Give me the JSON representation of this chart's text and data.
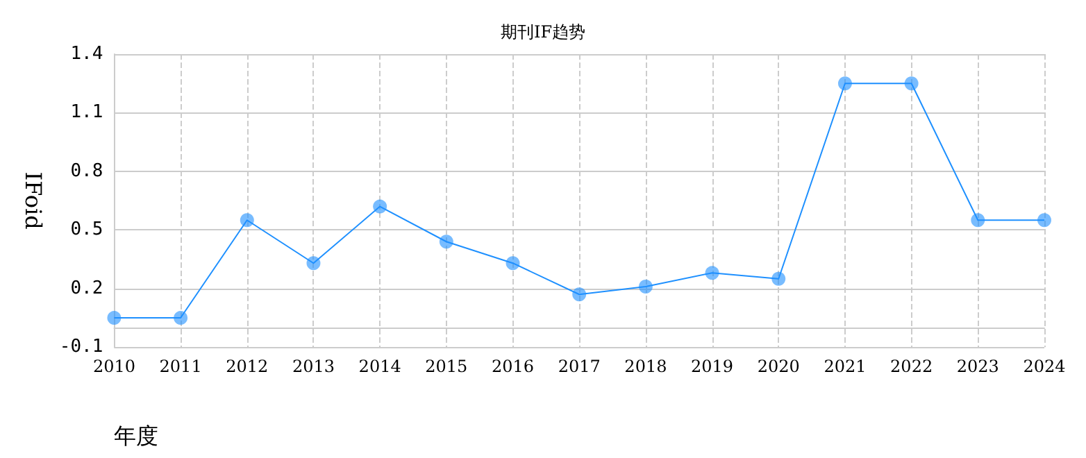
{
  "chart_data": {
    "type": "line",
    "title": "期刊IF趋势",
    "xlabel": "年度",
    "ylabel": "IFoid",
    "categories": [
      "2010",
      "2011",
      "2012",
      "2013",
      "2014",
      "2015",
      "2016",
      "2017",
      "2018",
      "2019",
      "2020",
      "2021",
      "2022",
      "2023",
      "2024"
    ],
    "series": [
      {
        "color": "#1e90ff",
        "values": [
          0.05,
          0.05,
          0.55,
          0.33,
          0.62,
          0.44,
          0.33,
          0.17,
          0.21,
          0.28,
          0.25,
          1.25,
          1.25,
          0.55,
          0.55
        ]
      }
    ],
    "ylim": [
      -0.1,
      1.4
    ],
    "yticks": [
      -0.1,
      0.2,
      0.5,
      0.8,
      1.1,
      1.4
    ],
    "grid": true,
    "marker": "circle",
    "line_style": "solid"
  }
}
